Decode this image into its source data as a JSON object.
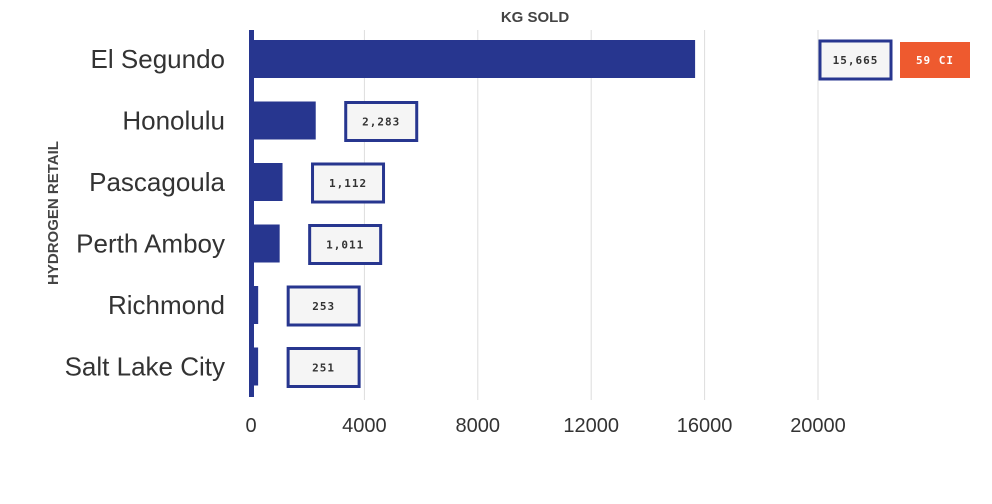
{
  "chart_data": {
    "type": "bar",
    "orientation": "horizontal",
    "title": "KG SOLD",
    "xlabel": "",
    "ylabel": "HYDROGEN RETAIL",
    "categories": [
      "El Segundo",
      "Honolulu",
      "Pascagoula",
      "Perth Amboy",
      "Richmond",
      "Salt Lake City"
    ],
    "values": [
      15665,
      2283,
      1112,
      1011,
      253,
      251
    ],
    "value_labels": [
      "15,665",
      "2,283",
      "1,112",
      "1,011",
      "253",
      "251"
    ],
    "xlim": [
      0,
      24000
    ],
    "xticks": [
      0,
      4000,
      8000,
      12000,
      16000,
      20000
    ],
    "grid": true,
    "bar_color": "#27368F",
    "annotation": {
      "text": "59 CI",
      "category": "El Segundo",
      "color": "#EE5A2F"
    }
  }
}
